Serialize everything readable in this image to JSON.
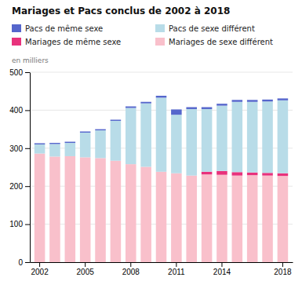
{
  "chart_data": {
    "type": "bar",
    "title": "Mariages et Pacs conclus de 2002 à 2018",
    "ylabel": "en milliers",
    "categories": [
      "2002",
      null,
      null,
      "2005",
      null,
      null,
      "2008",
      null,
      null,
      "2011",
      null,
      null,
      "2014",
      null,
      null,
      null,
      "2018"
    ],
    "series": [
      {
        "name": "Mariages de sexe différent",
        "color": "#f9c0cb",
        "values": [
          286,
          278,
          279,
          276,
          274,
          267,
          258,
          251,
          238,
          234,
          228,
          231,
          230,
          228,
          229,
          228,
          227
        ]
      },
      {
        "name": "Mariages de même sexe",
        "color": "#e8327c",
        "values": [
          0,
          0,
          0,
          0,
          0,
          0,
          0,
          0,
          0,
          0,
          0,
          7,
          10,
          9,
          7,
          7,
          7
        ]
      },
      {
        "name": "Pacs de sexe différent",
        "color": "#b8dce8",
        "values": [
          24,
          33,
          35,
          65,
          73,
          105,
          148,
          167,
          195,
          154,
          175,
          165,
          172,
          185,
          186,
          188,
          192
        ]
      },
      {
        "name": "Pacs de même sexe",
        "color": "#5566cc",
        "values": [
          3,
          3,
          3,
          3,
          3,
          3,
          4,
          4,
          5,
          14,
          5,
          5,
          5,
          5,
          5,
          5,
          5
        ]
      }
    ],
    "ylim": [
      0,
      500
    ],
    "yticks": [
      0,
      100,
      200,
      300,
      400,
      500
    ],
    "grid": true,
    "stacked": true,
    "legend": "top"
  }
}
